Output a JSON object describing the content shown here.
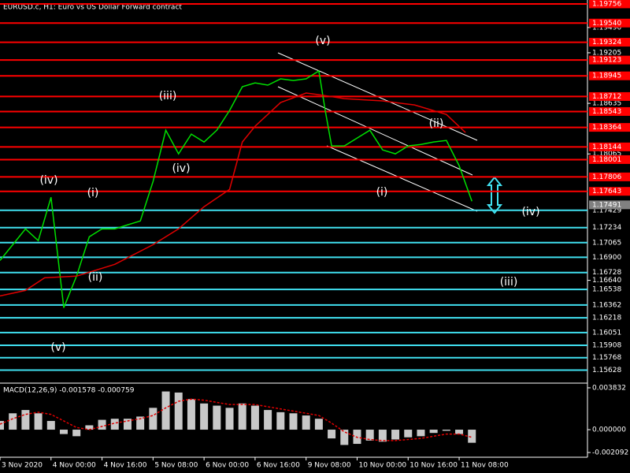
{
  "header": "EURUSD.c, H1:  Euro vs US Dollar Forward contract",
  "annotations": [
    "(v)",
    "(iii)",
    "(iv)",
    "(i)",
    "(ii)",
    "(v)",
    "(iv)",
    "(ii)",
    "(i)",
    "(iv)",
    "(iii)"
  ],
  "chart_data": [
    {
      "type": "line",
      "xlim": [
        0,
        184
      ],
      "ylim": [
        1.1549,
        1.198
      ],
      "yticks": [
        {
          "value": 1.1949,
          "label": "1.19490"
        },
        {
          "value": 1.19205,
          "label": "1.19205"
        },
        {
          "value": 1.18635,
          "label": "1.18635"
        },
        {
          "value": 1.18065,
          "label": "1.18065"
        },
        {
          "value": 1.1664,
          "label": "1.16640"
        }
      ],
      "last_price": {
        "value": 1.17491,
        "label": "1.17491"
      },
      "x": [
        0,
        4,
        8,
        12,
        16,
        20,
        24,
        28,
        32,
        36,
        40,
        44,
        48,
        52,
        56,
        60,
        64,
        68,
        72,
        76,
        80,
        84,
        88,
        92,
        96,
        100,
        102,
        104,
        108,
        112,
        116,
        120,
        124,
        128,
        132,
        136,
        140,
        144,
        148
      ],
      "series": [
        {
          "color": "#00e000",
          "values": [
            1.16864,
            1.17042,
            1.1722,
            1.17087,
            1.17576,
            1.16331,
            1.16687,
            1.17131,
            1.1722,
            1.1722,
            1.17265,
            1.17309,
            1.17754,
            1.18332,
            1.18066,
            1.18288,
            1.18199,
            1.18332,
            1.18555,
            1.18822,
            1.18866,
            1.1884,
            1.18911,
            1.18893,
            1.18911,
            1.19,
            1.18555,
            1.18155,
            1.18155,
            1.18244,
            1.18332,
            1.1811,
            1.18066,
            1.18155,
            1.18172,
            1.18199,
            1.18217,
            1.17932,
            1.17532
          ]
        },
        {
          "color": "#e00000",
          "x": [
            0,
            8,
            14,
            24,
            36,
            48,
            56,
            64,
            72,
            76,
            80,
            88,
            96,
            100,
            108,
            120,
            130,
            140,
            146
          ],
          "values": [
            1.16464,
            1.16526,
            1.16669,
            1.16687,
            1.1682,
            1.17042,
            1.1722,
            1.1747,
            1.17665,
            1.18199,
            1.18377,
            1.18644,
            1.18751,
            1.18733,
            1.18688,
            1.18662,
            1.18617,
            1.1851,
            1.18306
          ]
        }
      ],
      "levels": [
        {
          "color": "#ff0000",
          "values": [
            1.19756,
            1.1954,
            1.19324,
            1.19123,
            1.18945,
            1.18712,
            1.18543,
            1.18364,
            1.18144,
            1.18001,
            1.17806,
            1.17643
          ],
          "value_labels": [
            "1.19756",
            "1.19540",
            "1.19324",
            "1.19123",
            "1.18945",
            "1.18712",
            "1.18543",
            "1.18364",
            "1.18144",
            "1.18001",
            "1.17806",
            "1.17643"
          ]
        },
        {
          "color": "#40e0f0",
          "values": [
            1.17429,
            1.17234,
            1.17065,
            1.169,
            1.16728,
            1.16538,
            1.16362,
            1.16218,
            1.16051,
            1.15908,
            1.15768,
            1.15628
          ],
          "value_labels": [
            "1.17429",
            "1.17234",
            "1.17065",
            "1.16900",
            "1.16728",
            "1.16538",
            "1.16362",
            "1.16218",
            "1.16051",
            "1.15908",
            "1.15768",
            "1.15628"
          ]
        }
      ]
    },
    {
      "type": "bar",
      "title": "MACD(12,26,9) -0.001578 -0.000759",
      "xlim": [
        0,
        184
      ],
      "ylim": [
        -0.00238,
        0.00419
      ],
      "yticks": [
        0.003832,
        {
          "value": 0,
          "label": "0.000000"
        },
        -0.002092
      ],
      "xticks": [
        {
          "value": 0,
          "label": "3 Nov 2020"
        },
        {
          "value": 16,
          "label": "4 Nov 00:00"
        },
        {
          "value": 32,
          "label": "4 Nov 16:00"
        },
        {
          "value": 48,
          "label": "5 Nov 08:00"
        },
        {
          "value": 64,
          "label": "6 Nov 00:00"
        },
        {
          "value": 80,
          "label": "6 Nov 16:00"
        },
        {
          "value": 96,
          "label": "9 Nov 08:00"
        },
        {
          "value": 112,
          "label": "10 Nov 00:00"
        },
        {
          "value": 128,
          "label": "10 Nov 16:00"
        },
        {
          "value": 144,
          "label": "11 Nov 08:00"
        }
      ],
      "x": [
        0,
        4,
        8,
        12,
        16,
        20,
        24,
        28,
        32,
        36,
        40,
        44,
        48,
        52,
        56,
        60,
        64,
        68,
        72,
        76,
        80,
        84,
        88,
        92,
        96,
        100,
        104,
        108,
        112,
        116,
        120,
        124,
        128,
        132,
        136,
        140,
        144,
        148
      ],
      "series": [
        {
          "color": "#c8c8c8",
          "values": [
            0.0008,
            0.0015,
            0.0018,
            0.0015,
            0.0008,
            -0.0004,
            -0.0006,
            0.0004,
            0.0009,
            0.001,
            0.001,
            0.0012,
            0.002,
            0.0035,
            0.0034,
            0.0028,
            0.0024,
            0.0022,
            0.002,
            0.0024,
            0.0022,
            0.0018,
            0.0016,
            0.0015,
            0.0013,
            0.001,
            -0.0008,
            -0.0014,
            -0.0013,
            -0.001,
            -0.0011,
            -0.0009,
            -0.0007,
            -0.0006,
            -0.0003,
            -0.0001,
            -0.0004,
            -0.0012
          ]
        },
        {
          "color": "#e00000",
          "values": [
            0.0005,
            0.001,
            0.0014,
            0.0016,
            0.0014,
            0.0008,
            0.0002,
            0,
            0.0003,
            0.0006,
            0.0008,
            0.001,
            0.0013,
            0.002,
            0.0026,
            0.0028,
            0.0027,
            0.0025,
            0.0023,
            0.0023,
            0.0023,
            0.0021,
            0.0019,
            0.0017,
            0.0015,
            0.0013,
            0.0006,
            -0.0002,
            -0.0007,
            -0.0009,
            -0.001,
            -0.001,
            -0.0009,
            -0.0008,
            -0.0006,
            -0.0004,
            -0.0004,
            -0.0007
          ]
        }
      ]
    }
  ]
}
